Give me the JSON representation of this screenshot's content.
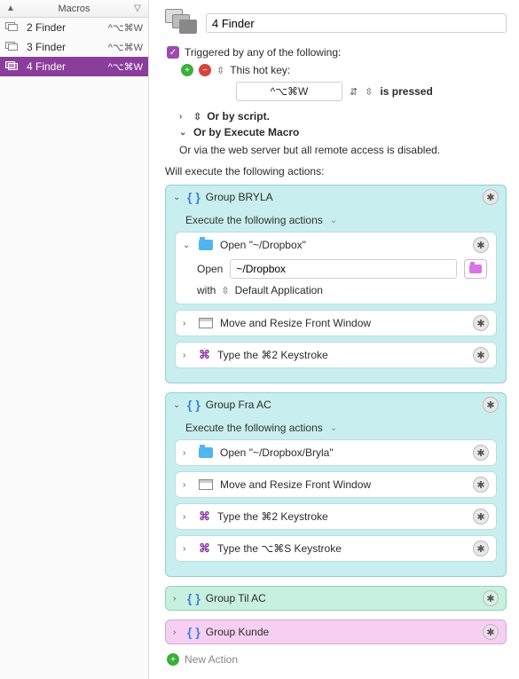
{
  "sidebar": {
    "title": "Macros",
    "items": [
      {
        "name": "2 Finder",
        "shortcut": "^⌥⌘W",
        "selected": false
      },
      {
        "name": "3 Finder",
        "shortcut": "^⌥⌘W",
        "selected": false
      },
      {
        "name": "4 Finder",
        "shortcut": "^⌥⌘W",
        "selected": true
      }
    ]
  },
  "macro": {
    "title": "4 Finder",
    "trigger_heading": "Triggered by any of the following:",
    "hotkey_label": "This hot key:",
    "hotkey_value": "^⌥⌘W",
    "pressed_label": "is pressed",
    "or_script": "Or by script.",
    "or_execute": "Or by Execute Macro",
    "or_web": "Or via the web server but all remote access is disabled.",
    "actions_heading": "Will execute the following actions:",
    "new_action_label": "New Action"
  },
  "groups": [
    {
      "name": "Group BRYLA",
      "expanded": true,
      "color": "blue",
      "sub_label": "Execute the following actions",
      "actions": [
        {
          "type": "open",
          "expanded": true,
          "label": "Open \"~/Dropbox\"",
          "open_label": "Open",
          "path": "~/Dropbox",
          "with_label": "with",
          "with_value": "Default Application"
        },
        {
          "type": "window",
          "expanded": false,
          "label": "Move and Resize Front Window"
        },
        {
          "type": "keystroke",
          "expanded": false,
          "label": "Type the ⌘2 Keystroke"
        }
      ]
    },
    {
      "name": "Group Fra AC",
      "expanded": true,
      "color": "blue",
      "sub_label": "Execute the following actions",
      "actions": [
        {
          "type": "open",
          "expanded": false,
          "label": "Open \"~/Dropbox/Bryla\""
        },
        {
          "type": "window",
          "expanded": false,
          "label": "Move and Resize Front Window"
        },
        {
          "type": "keystroke",
          "expanded": false,
          "label": "Type the ⌘2 Keystroke"
        },
        {
          "type": "keystroke",
          "expanded": false,
          "label": "Type the ⌥⌘S Keystroke"
        }
      ]
    },
    {
      "name": "Group Til AC",
      "expanded": false,
      "color": "teal",
      "actions": []
    },
    {
      "name": "Group Kunde",
      "expanded": false,
      "color": "pink",
      "actions": []
    }
  ],
  "colors": {
    "selection": "#8b3d9c",
    "group_blue": "#c8eef0",
    "group_teal": "#c7f0df",
    "group_pink": "#f6d0f3"
  }
}
